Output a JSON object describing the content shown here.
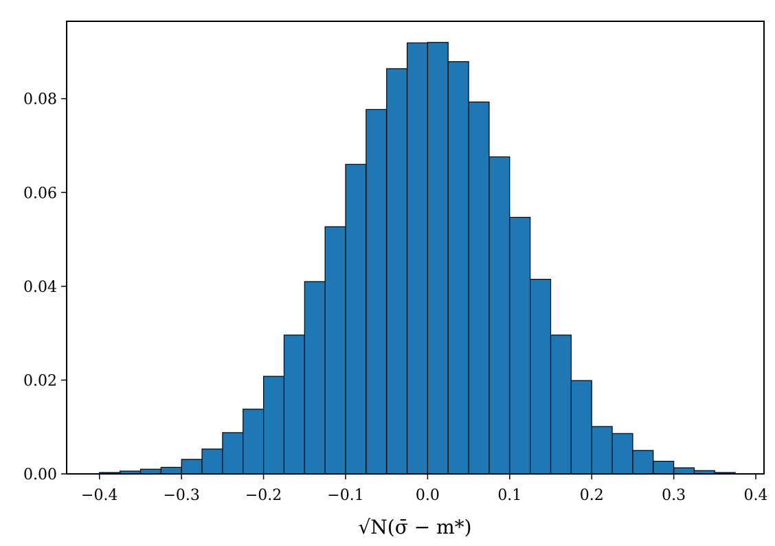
{
  "chart_data": {
    "type": "bar",
    "histogram": true,
    "xlabel": "√N(σ̄ − m*)",
    "ylabel": "",
    "title": "",
    "xlim": [
      -0.44,
      0.41
    ],
    "ylim": [
      0.0,
      0.0965
    ],
    "grid": false,
    "legend": "none",
    "bar_color": "#1f77b4",
    "edge_color": "#000000",
    "bin_width": 0.025,
    "bin_edges": [
      -0.4,
      -0.375,
      -0.35,
      -0.325,
      -0.3,
      -0.275,
      -0.25,
      -0.225,
      -0.2,
      -0.175,
      -0.15,
      -0.125,
      -0.1,
      -0.075,
      -0.05,
      -0.025,
      0.0,
      0.025,
      0.05,
      0.075,
      0.1,
      0.125,
      0.15,
      0.175,
      0.2,
      0.225,
      0.25,
      0.275,
      0.3,
      0.325,
      0.35,
      0.375
    ],
    "values": [
      0.0003,
      0.0006,
      0.001,
      0.0014,
      0.0031,
      0.0053,
      0.0088,
      0.0138,
      0.0208,
      0.0296,
      0.041,
      0.0527,
      0.066,
      0.0777,
      0.0864,
      0.0919,
      0.092,
      0.0879,
      0.0793,
      0.0676,
      0.0547,
      0.0415,
      0.0296,
      0.0199,
      0.0101,
      0.0086,
      0.005,
      0.0027,
      0.0013,
      0.0007,
      0.0003
    ],
    "x_ticks": [
      -0.4,
      -0.3,
      -0.2,
      -0.1,
      0.0,
      0.1,
      0.2,
      0.3,
      0.4
    ],
    "x_tick_labels": [
      "−0.4",
      "−0.3",
      "−0.2",
      "−0.1",
      "0.0",
      "0.1",
      "0.2",
      "0.3",
      "0.4"
    ],
    "y_ticks": [
      0.0,
      0.02,
      0.04,
      0.06,
      0.08
    ],
    "y_tick_labels": [
      "0.00",
      "0.02",
      "0.04",
      "0.06",
      "0.08"
    ]
  }
}
